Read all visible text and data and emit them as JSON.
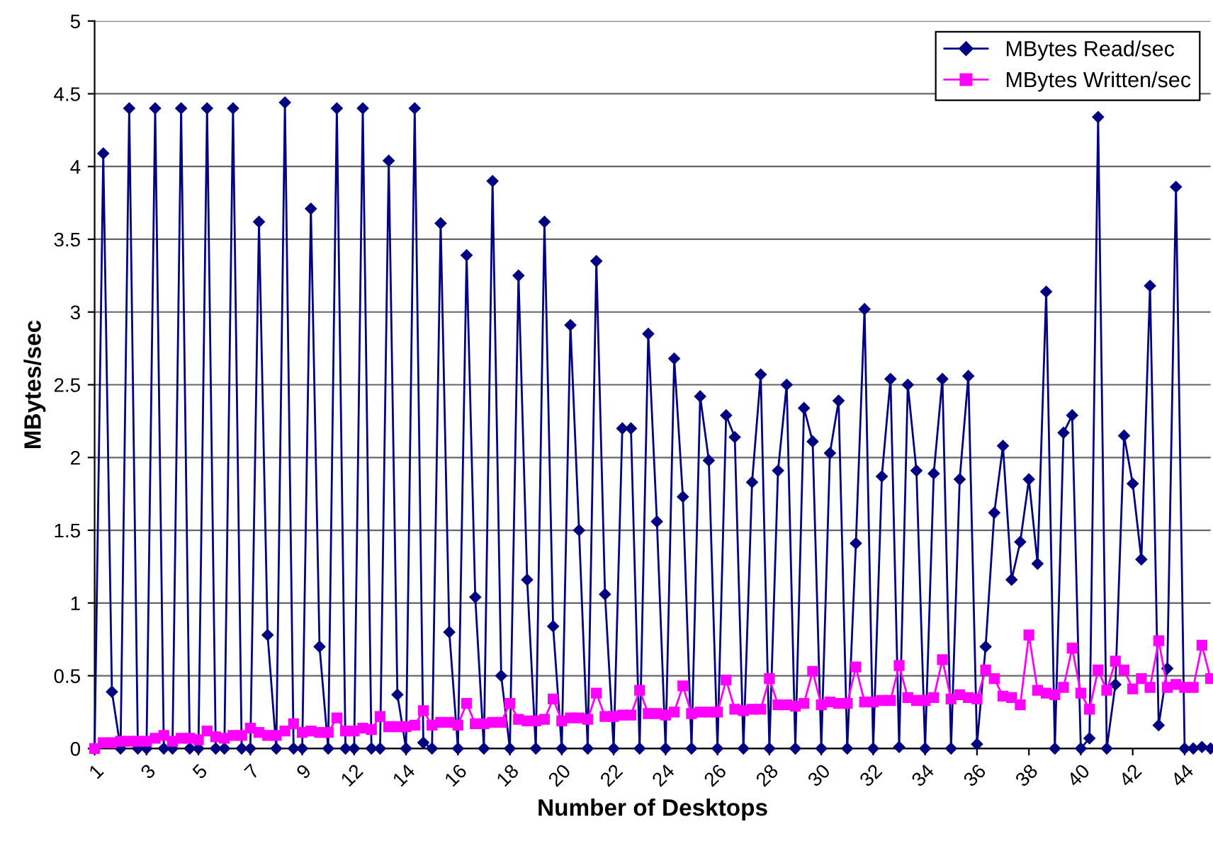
{
  "chart_data": {
    "type": "line",
    "xlabel": "Number of Desktops",
    "ylabel": "MBytes/sec",
    "categories": [
      "1",
      null,
      null,
      null,
      null,
      null,
      "3",
      null,
      null,
      null,
      null,
      null,
      "5",
      null,
      null,
      null,
      null,
      null,
      "7",
      null,
      null,
      null,
      null,
      null,
      "9",
      null,
      null,
      null,
      null,
      null,
      "12",
      null,
      null,
      null,
      null,
      null,
      "14",
      null,
      null,
      null,
      null,
      null,
      "16",
      null,
      null,
      null,
      null,
      null,
      "18",
      null,
      null,
      null,
      null,
      null,
      "20",
      null,
      null,
      null,
      null,
      null,
      "22",
      null,
      null,
      null,
      null,
      null,
      "24",
      null,
      null,
      null,
      null,
      null,
      "26",
      null,
      null,
      null,
      null,
      null,
      "28",
      null,
      null,
      null,
      null,
      null,
      "30",
      null,
      null,
      null,
      null,
      null,
      "32",
      null,
      null,
      null,
      null,
      null,
      "34",
      null,
      null,
      null,
      null,
      null,
      "36",
      null,
      null,
      null,
      null,
      null,
      "38",
      null,
      null,
      null,
      null,
      null,
      "40",
      null,
      null,
      null,
      null,
      null,
      "42",
      null,
      null,
      null,
      null,
      null,
      "44",
      null,
      null,
      null
    ],
    "series": [
      {
        "name": "MBytes Read/sec",
        "color": "#000080",
        "marker": "diamond",
        "values": [
          0,
          4.09,
          0.39,
          0,
          4.4,
          0,
          0,
          4.4,
          0,
          0,
          4.4,
          0,
          0,
          4.4,
          0,
          0,
          4.4,
          0,
          0,
          3.62,
          0.78,
          0,
          4.44,
          0,
          0,
          3.71,
          0.7,
          0,
          4.4,
          0,
          0,
          4.4,
          0,
          0,
          4.04,
          0.37,
          0,
          4.4,
          0.04,
          0,
          3.61,
          0.8,
          0,
          3.39,
          1.04,
          0,
          3.9,
          0.5,
          0,
          3.25,
          1.16,
          0,
          3.62,
          0.84,
          0,
          2.91,
          1.5,
          0,
          3.35,
          1.06,
          0,
          2.2,
          2.2,
          0,
          2.85,
          1.56,
          0,
          2.68,
          1.73,
          0,
          2.42,
          1.98,
          0,
          2.29,
          2.14,
          0,
          1.83,
          2.57,
          0,
          1.91,
          2.5,
          0,
          2.34,
          2.11,
          0,
          2.03,
          2.39,
          0,
          1.41,
          3.02,
          0,
          1.87,
          2.54,
          0.01,
          2.5,
          1.91,
          0,
          1.89,
          2.54,
          0,
          1.85,
          2.56,
          0.03,
          0.7,
          1.62,
          2.08,
          1.16,
          1.42,
          1.85,
          1.27,
          3.14,
          0,
          2.17,
          2.29,
          0,
          0.07,
          4.34,
          0,
          0.44,
          2.15,
          1.82,
          1.3,
          3.18,
          0.16,
          0.55,
          3.86,
          0,
          0,
          0.01,
          0
        ]
      },
      {
        "name": "MBytes Written/sec",
        "color": "#ff00ff",
        "marker": "square",
        "values": [
          0,
          0.04,
          0.04,
          0.05,
          0.05,
          0.05,
          0.05,
          0.07,
          0.09,
          0.05,
          0.07,
          0.07,
          0.06,
          0.12,
          0.08,
          0.07,
          0.09,
          0.09,
          0.14,
          0.11,
          0.09,
          0.09,
          0.12,
          0.17,
          0.11,
          0.12,
          0.11,
          0.11,
          0.21,
          0.12,
          0.12,
          0.14,
          0.13,
          0.22,
          0.15,
          0.15,
          0.15,
          0.16,
          0.26,
          0.16,
          0.18,
          0.18,
          0.16,
          0.31,
          0.17,
          0.17,
          0.18,
          0.18,
          0.31,
          0.2,
          0.19,
          0.19,
          0.2,
          0.34,
          0.19,
          0.21,
          0.21,
          0.2,
          0.38,
          0.22,
          0.22,
          0.23,
          0.23,
          0.4,
          0.24,
          0.24,
          0.23,
          0.25,
          0.43,
          0.24,
          0.25,
          0.25,
          0.25,
          0.47,
          0.27,
          0.26,
          0.27,
          0.27,
          0.48,
          0.3,
          0.3,
          0.29,
          0.31,
          0.53,
          0.3,
          0.32,
          0.31,
          0.31,
          0.56,
          0.32,
          0.32,
          0.33,
          0.33,
          0.57,
          0.35,
          0.33,
          0.33,
          0.35,
          0.61,
          0.34,
          0.37,
          0.35,
          0.34,
          0.54,
          0.48,
          0.36,
          0.35,
          0.3,
          0.78,
          0.4,
          0.38,
          0.37,
          0.42,
          0.69,
          0.38,
          0.27,
          0.54,
          0.4,
          0.6,
          0.54,
          0.41,
          0.48,
          0.42,
          0.74,
          0.42,
          0.44,
          0.42,
          0.42,
          0.71,
          0.48
        ]
      }
    ],
    "ylim": [
      0,
      5
    ],
    "yticks": [
      0,
      0.5,
      1,
      1.5,
      2,
      2.5,
      3,
      3.5,
      4,
      4.5,
      5
    ],
    "grid": "y",
    "legend": "top right"
  }
}
